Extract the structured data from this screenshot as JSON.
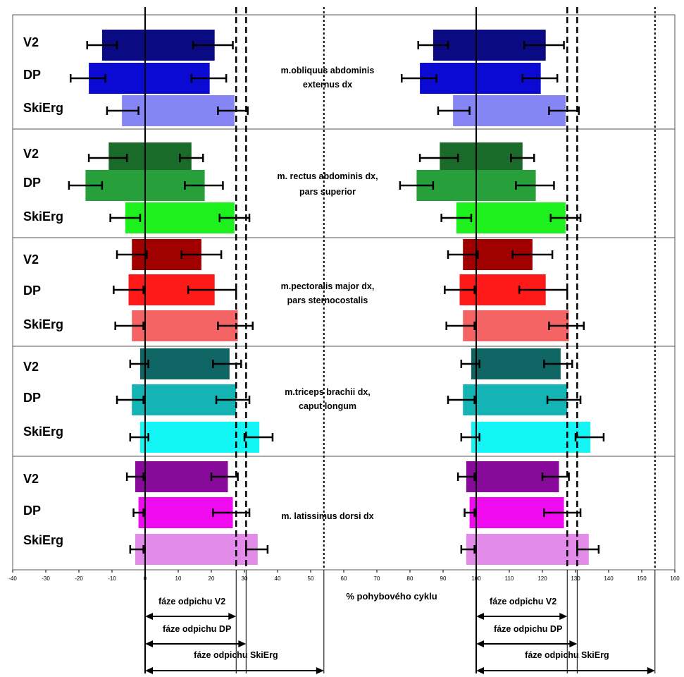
{
  "chart_data": {
    "type": "bar",
    "orientation": "horizontal-range",
    "xlabel": "% pohybového cyklu",
    "xlim": [
      -40,
      160
    ],
    "xticks": [
      -40,
      -30,
      -20,
      -10,
      0,
      10,
      20,
      30,
      40,
      50,
      60,
      70,
      80,
      90,
      100,
      110,
      120,
      130,
      140,
      150,
      160
    ],
    "conditions": [
      "V2",
      "DP",
      "SkiErg"
    ],
    "cycle_shift": 100,
    "phase_boundaries": [
      {
        "name": "V2",
        "value": 27.5,
        "style": "dashed"
      },
      {
        "name": "DP",
        "value": 30.5,
        "style": "dashed"
      },
      {
        "name": "SkiErg",
        "value": 54,
        "style": "dotted"
      }
    ],
    "phase_labels": [
      "fáze odpichu V2",
      "fáze odpichu DP",
      "fáze odpichu SkiErg"
    ],
    "muscles": [
      {
        "label_lines": [
          "m.obliquus abdominis",
          "externus dx"
        ],
        "colors": [
          "#0a0a82",
          "#0a0ad2",
          "#8585f5"
        ],
        "bars": [
          {
            "condition": "V2",
            "start": -13,
            "end": 21,
            "start_err": [
              -17.5,
              -8.5
            ],
            "end_err": [
              14.5,
              26.5
            ]
          },
          {
            "condition": "DP",
            "start": -17,
            "end": 19.5,
            "start_err": [
              -22.5,
              -12
            ],
            "end_err": [
              14,
              24.5
            ]
          },
          {
            "condition": "SkiErg",
            "start": -7,
            "end": 27,
            "start_err": [
              -11.5,
              -2
            ],
            "end_err": [
              22,
              31
            ]
          }
        ]
      },
      {
        "label_lines": [
          "m. rectus abdominis dx,",
          "pars superior"
        ],
        "colors": [
          "#1a6b2a",
          "#27a03c",
          "#1ef01e"
        ],
        "bars": [
          {
            "condition": "V2",
            "start": -11,
            "end": 14,
            "start_err": [
              -17,
              -5.5
            ],
            "end_err": [
              10.5,
              17.5
            ]
          },
          {
            "condition": "DP",
            "start": -18,
            "end": 18,
            "start_err": [
              -23,
              -13
            ],
            "end_err": [
              12,
              23.5
            ]
          },
          {
            "condition": "SkiErg",
            "start": -6,
            "end": 27,
            "start_err": [
              -10.5,
              -1.5
            ],
            "end_err": [
              22.5,
              31.5
            ]
          }
        ]
      },
      {
        "label_lines": [
          "m.pectoralis major dx,",
          "pars sternocostalis"
        ],
        "colors": [
          "#a00000",
          "#ff1a1a",
          "#f56464"
        ],
        "bars": [
          {
            "condition": "V2",
            "start": -4,
            "end": 17,
            "start_err": [
              -8.5,
              0.5
            ],
            "end_err": [
              11,
              23
            ]
          },
          {
            "condition": "DP",
            "start": -5,
            "end": 21,
            "start_err": [
              -9.5,
              -0.5
            ],
            "end_err": [
              13,
              27.5
            ]
          },
          {
            "condition": "SkiErg",
            "start": -4,
            "end": 28,
            "start_err": [
              -9,
              -0.5
            ],
            "end_err": [
              22,
              32.5
            ]
          }
        ]
      },
      {
        "label_lines": [
          "m.triceps brachii dx,",
          "caput longum"
        ],
        "colors": [
          "#0f6464",
          "#14b4b4",
          "#14f5f5"
        ],
        "bars": [
          {
            "condition": "V2",
            "start": -1.5,
            "end": 25.5,
            "start_err": [
              -4.5,
              1
            ],
            "end_err": [
              20.5,
              29
            ]
          },
          {
            "condition": "DP",
            "start": -4,
            "end": 27.5,
            "start_err": [
              -8.5,
              -0.5
            ],
            "end_err": [
              21.5,
              31.5
            ]
          },
          {
            "condition": "SkiErg",
            "start": -1.5,
            "end": 34.5,
            "start_err": [
              -4.5,
              1
            ],
            "end_err": [
              30,
              38.5
            ]
          }
        ]
      },
      {
        "label_lines": [
          "m. latissimus dorsi dx"
        ],
        "colors": [
          "#880a9a",
          "#f00af0",
          "#e28be8"
        ],
        "bars": [
          {
            "condition": "V2",
            "start": -3,
            "end": 25,
            "start_err": [
              -5.5,
              -0.5
            ],
            "end_err": [
              20,
              28
            ]
          },
          {
            "condition": "DP",
            "start": -2,
            "end": 26.5,
            "start_err": [
              -3.5,
              -0.5
            ],
            "end_err": [
              20.5,
              31.5
            ]
          },
          {
            "condition": "SkiErg",
            "start": -3,
            "end": 34,
            "start_err": [
              -4.5,
              -0.5
            ],
            "end_err": [
              30.5,
              37
            ]
          }
        ]
      }
    ]
  }
}
